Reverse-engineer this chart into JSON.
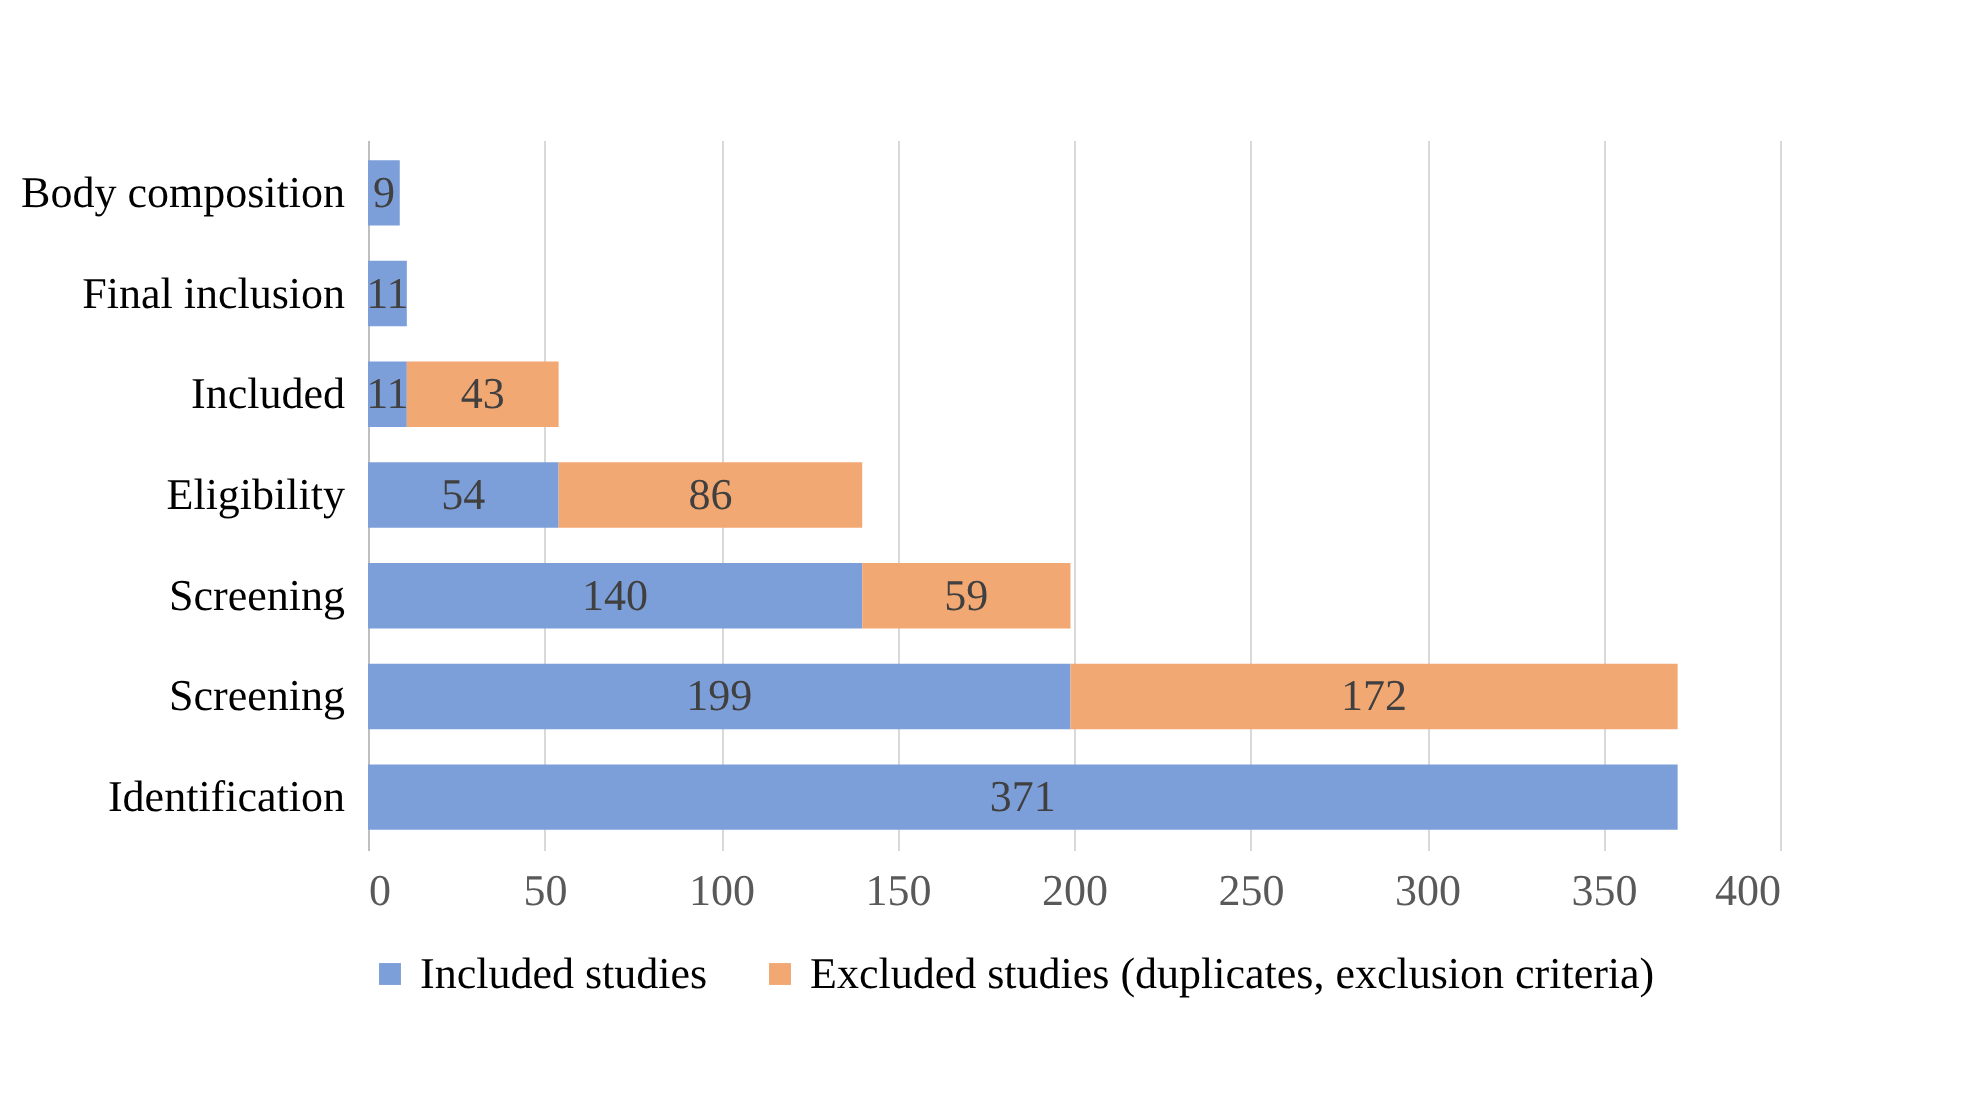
{
  "chart_data": {
    "type": "bar",
    "orientation": "horizontal",
    "stacked": true,
    "categories": [
      "Body composition",
      "Final inclusion",
      "Included",
      "Eligibility",
      "Screening",
      "Screening",
      "Identification"
    ],
    "series": [
      {
        "name": "Included studies",
        "color": "#7d9fd9",
        "values": [
          9,
          11,
          11,
          54,
          140,
          199,
          371
        ]
      },
      {
        "name": "Excluded studies (duplicates, exclusion criteria)",
        "color": "#f2a873",
        "values": [
          null,
          null,
          43,
          86,
          59,
          172,
          null
        ]
      }
    ],
    "xlim": [
      0,
      400
    ],
    "xticks": [
      0,
      50,
      100,
      150,
      200,
      250,
      300,
      350,
      400
    ],
    "grid": "x",
    "legend": "bottom",
    "data_labels": true
  }
}
